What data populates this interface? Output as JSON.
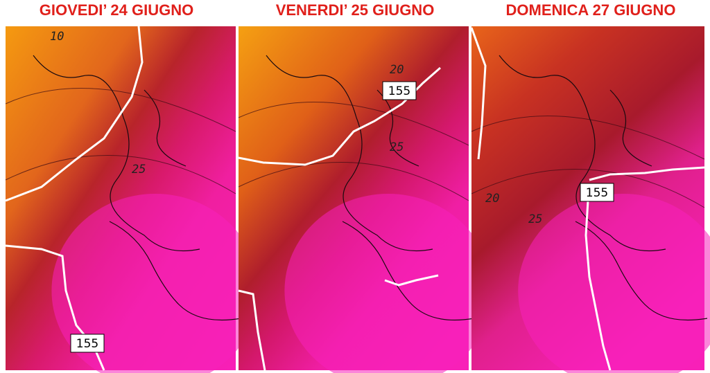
{
  "panels": [
    {
      "title": "GIOVEDI’ 24 GIUGNO",
      "isotherm_labels": [
        "10",
        "25"
      ],
      "geopotential_label": "155"
    },
    {
      "title": "VENERDI’ 25 GIUGNO",
      "isotherm_labels": [
        "20",
        "25"
      ],
      "geopotential_label": "155"
    },
    {
      "title": "DOMENICA 27 GIUGNO",
      "isotherm_labels": [
        "20",
        "25"
      ],
      "geopotential_label": "155"
    }
  ]
}
